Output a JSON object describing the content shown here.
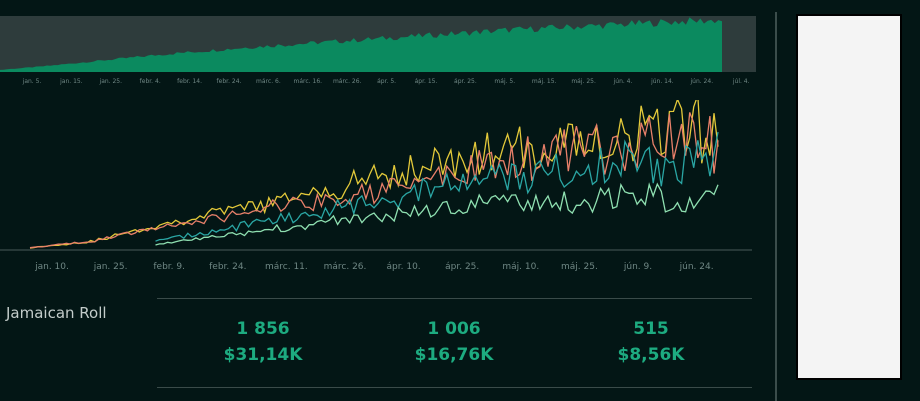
{
  "colors": {
    "background": "#031615",
    "area_fill": "#0b8a5f",
    "area_bg": "#2e3c3c",
    "series_yellow": "#e3c93a",
    "series_salmon": "#e8806a",
    "series_teal": "#2aa6a4",
    "series_mint": "#8fe0b1",
    "metric_green": "#1dab80"
  },
  "chart_data": [
    {
      "type": "area",
      "title": "",
      "categories": [
        "jan. 5.",
        "jan. 15.",
        "jan. 25.",
        "febr. 4.",
        "febr. 14.",
        "febr. 24.",
        "márc. 6.",
        "márc. 16.",
        "márc. 26.",
        "ápr. 5.",
        "ápr. 15.",
        "ápr. 25.",
        "máj. 5.",
        "máj. 15.",
        "máj. 25.",
        "jún. 4.",
        "jún. 14.",
        "jún. 24.",
        "júl. 4."
      ],
      "values": [
        3,
        8,
        14,
        20,
        26,
        31,
        36,
        40,
        44,
        48,
        52,
        56,
        60,
        63,
        66,
        69,
        72,
        74,
        0
      ],
      "ylim": [
        0,
        80
      ]
    },
    {
      "type": "line",
      "title": "",
      "categories": [
        "jan. 10.",
        "jan. 25.",
        "febr. 9.",
        "febr. 24.",
        "márc. 11.",
        "márc. 26.",
        "ápr. 10.",
        "ápr. 25.",
        "máj. 10.",
        "máj. 25.",
        "jún. 9.",
        "jún. 24."
      ],
      "series": [
        {
          "name": "yellow",
          "values": [
            2,
            8,
            22,
            34,
            44,
            58,
            74,
            84,
            94,
            102,
            108,
            112
          ]
        },
        {
          "name": "salmon",
          "values": [
            2,
            8,
            20,
            30,
            40,
            48,
            58,
            72,
            84,
            92,
            96,
            100
          ]
        },
        {
          "name": "teal",
          "values": [
            0,
            2,
            8,
            18,
            28,
            40,
            50,
            62,
            70,
            76,
            80,
            84
          ]
        },
        {
          "name": "mint",
          "values": [
            0,
            1,
            5,
            12,
            20,
            28,
            34,
            40,
            44,
            46,
            48,
            48
          ]
        }
      ],
      "ylim": [
        0,
        130
      ]
    }
  ],
  "product": {
    "name": "Jamaican Roll",
    "metrics": [
      {
        "count": "1 856",
        "revenue": "$31,14K"
      },
      {
        "count": "1 006",
        "revenue": "$16,76K"
      },
      {
        "count": "515",
        "revenue": "$8,56K"
      }
    ]
  }
}
